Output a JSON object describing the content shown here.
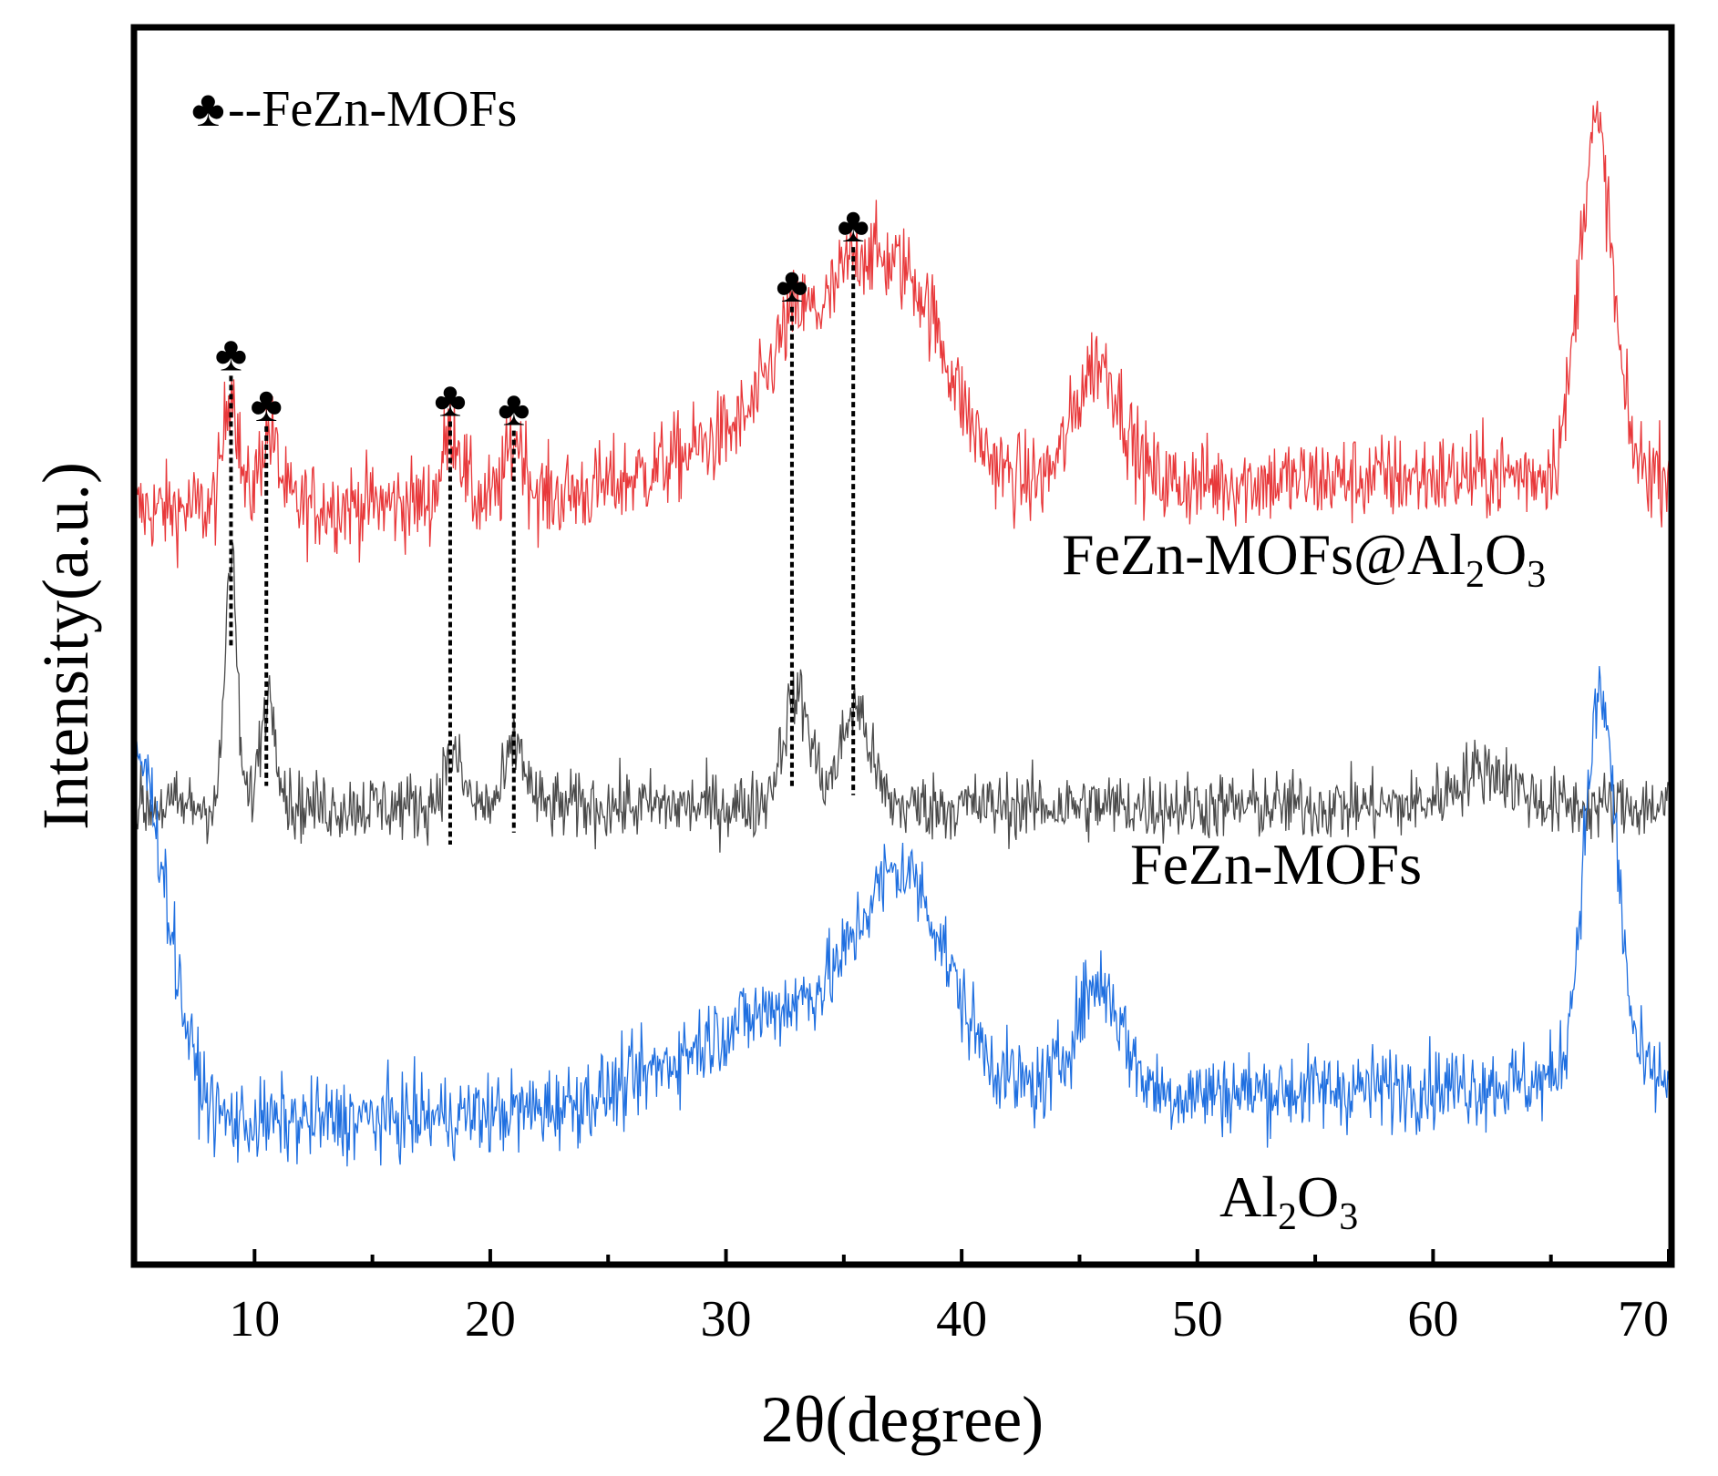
{
  "chart_data": {
    "type": "line",
    "title": "",
    "xlabel": "2θ(degree)",
    "ylabel": "Intensity(a.u.)",
    "xlim": [
      5,
      70
    ],
    "ylim": [
      0,
      100
    ],
    "y_ticks_shown": false,
    "x_ticks": [
      10,
      20,
      30,
      40,
      50,
      60,
      70
    ],
    "x_tick_labels": [
      "10",
      "20",
      "30",
      "40",
      "50",
      "60",
      "70"
    ],
    "legend": {
      "symbol": "♣",
      "label": "--FeZn-MOFs",
      "placement": "top-left"
    },
    "series": [
      {
        "name": "FeZn-MOFs@Al2O3",
        "label_main": "FeZn-MOFs@Al",
        "label_sub1": "2",
        "label_mid": "O",
        "label_sub2": "3",
        "color": "#e8393b",
        "baseline": 61,
        "slope": 0.05,
        "noise": 2.6,
        "peaks": [
          [
            9.0,
            10,
            0.3
          ],
          [
            10.6,
            6,
            0.4
          ],
          [
            18.4,
            6,
            0.4
          ],
          [
            21.1,
            5,
            0.4
          ],
          [
            33.0,
            8,
            1.0
          ],
          [
            35.3,
            7,
            0.9
          ],
          [
            37.6,
            15,
            1.8
          ],
          [
            45.8,
            10,
            1.0
          ],
          [
            66.9,
            28,
            0.7
          ],
          [
            32.5,
            6,
            4.0
          ]
        ]
      },
      {
        "name": "FeZn-MOFs",
        "label_main": "FeZn-MOFs",
        "color": "#4a4a4a",
        "baseline": 37,
        "slope": 0.0,
        "noise": 2.0,
        "peaks": [
          [
            9.0,
            20,
            0.25
          ],
          [
            10.6,
            9,
            0.35
          ],
          [
            18.4,
            4,
            0.4
          ],
          [
            21.1,
            5,
            0.4
          ],
          [
            33.0,
            9,
            0.6
          ],
          [
            35.5,
            8,
            0.6
          ],
          [
            62.2,
            3,
            1.2
          ]
        ]
      },
      {
        "name": "Al2O3",
        "label_main": "Al",
        "label_sub1": "2",
        "label_mid": "O",
        "label_sub2": "3",
        "color": "#1f6fe0",
        "baseline": 11,
        "slope": 0.06,
        "noise": 2.4,
        "peaks": [
          [
            5.0,
            30,
            1.3
          ],
          [
            37.6,
            14,
            1.8
          ],
          [
            45.8,
            9,
            1.0
          ],
          [
            67.1,
            31,
            0.7
          ],
          [
            33.0,
            8,
            4.5
          ]
        ]
      }
    ],
    "peak_markers": [
      {
        "x": 9.0,
        "label": "♣"
      },
      {
        "x": 10.5,
        "label": "♣"
      },
      {
        "x": 18.3,
        "label": "♣"
      },
      {
        "x": 21.0,
        "label": "♣"
      },
      {
        "x": 32.8,
        "label": "♣"
      },
      {
        "x": 35.4,
        "label": "♣"
      }
    ]
  }
}
